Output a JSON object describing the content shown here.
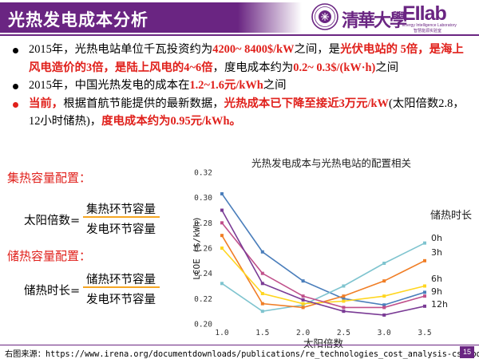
{
  "header": {
    "title": "光热发电成本分析",
    "logo_tsinghua": "清華大學",
    "logo_eilab": "EIlab",
    "logo_eilab_en": "Energy Intelligence Laboratory",
    "logo_eilab_cn": "智慧能源实验室",
    "accent_color": "#6a2582"
  },
  "bullets": [
    {
      "parts": [
        {
          "t": "2015年，光热电站单位千瓦投资约为",
          "red": false
        },
        {
          "t": "4200~ 8400$/kW",
          "red": true
        },
        {
          "t": "之间，是",
          "red": false
        },
        {
          "t": "光伏电站的 5倍，是海上风电造价的3倍，是陆上风电的4~6倍",
          "red": true
        },
        {
          "t": "，度电成本约为",
          "red": false
        },
        {
          "t": "0.2~ 0.3$/(kW·h)",
          "red": true
        },
        {
          "t": "之间",
          "red": false
        }
      ]
    },
    {
      "parts": [
        {
          "t": "2015年，中国光热发电的成本在",
          "red": false
        },
        {
          "t": "1.2~1.6元/kWh",
          "red": true
        },
        {
          "t": "之间",
          "red": false
        }
      ]
    },
    {
      "parts": [
        {
          "t": "当前，",
          "red": true
        },
        {
          "t": "根据首航节能提供的最新数据，",
          "red": false
        },
        {
          "t": "光热成本已下降至接近3万元/kW",
          "red": true
        },
        {
          "t": "(太阳倍数2.8，12小时储热)，",
          "red": false
        },
        {
          "t": "度电成本约为0.95元/kWh。",
          "red": true
        }
      ]
    }
  ],
  "left_panel": {
    "heat_config_title": "集热容量配置：",
    "solar_multiple_label": "太阳倍数=",
    "solar_multiple_num": "集热环节容量",
    "solar_multiple_den": "发电环节容量",
    "storage_config_title": "储热容量配置：",
    "storage_hours_label": "储热时长=",
    "storage_hours_num": "储热环节容量",
    "storage_hours_den": "发电环节容量"
  },
  "chart_data": {
    "type": "line",
    "title": "光热发电成本与光热电站的配置相关",
    "xlabel": "太阳倍数",
    "ylabel": "LCOE ($/kWh)",
    "xlim": [
      1.0,
      3.5
    ],
    "ylim": [
      0.2,
      0.32
    ],
    "x_ticks": [
      "1.0",
      "1.5",
      "2.0",
      "2.5",
      "3.0",
      "3.5"
    ],
    "y_ticks": [
      "0.20",
      "0.22",
      "0.24",
      "0.26",
      "0.28",
      "0.30",
      "0.32"
    ],
    "legend_title": "储热时长",
    "legend_placement": "right",
    "grid": false,
    "x": [
      1.0,
      1.5,
      2.0,
      2.5,
      3.0,
      3.5
    ],
    "series": [
      {
        "name": "0h",
        "color": "#4a7ebb",
        "values": [
          0.303,
          0.257,
          0.234,
          0.22,
          0.215,
          0.225
        ]
      },
      {
        "name": "3h",
        "color": "#7fc4cf",
        "values": [
          0.232,
          0.21,
          0.215,
          0.23,
          0.248,
          0.264
        ]
      },
      {
        "name": "6h",
        "color": "#f07e26",
        "values": [
          0.27,
          0.216,
          0.213,
          0.222,
          0.234,
          0.25
        ]
      },
      {
        "name": "9h",
        "color": "#ffd620",
        "values": [
          0.26,
          0.224,
          0.216,
          0.218,
          0.222,
          0.23
        ]
      },
      {
        "name": "12h",
        "color": "#c0508b",
        "values": [
          0.28,
          0.24,
          0.222,
          0.213,
          0.213,
          0.222
        ]
      },
      {
        "name": "",
        "color": "#7a3b95",
        "values": [
          0.29,
          0.232,
          0.219,
          0.21,
          0.207,
          0.214
        ]
      }
    ]
  },
  "footer": {
    "source_label": "右图来源：",
    "source_url": "https://www.irena.org/documentdownloads/publications/re_technologies_cost_analysis-csp.pdf",
    "page_number": "15"
  }
}
